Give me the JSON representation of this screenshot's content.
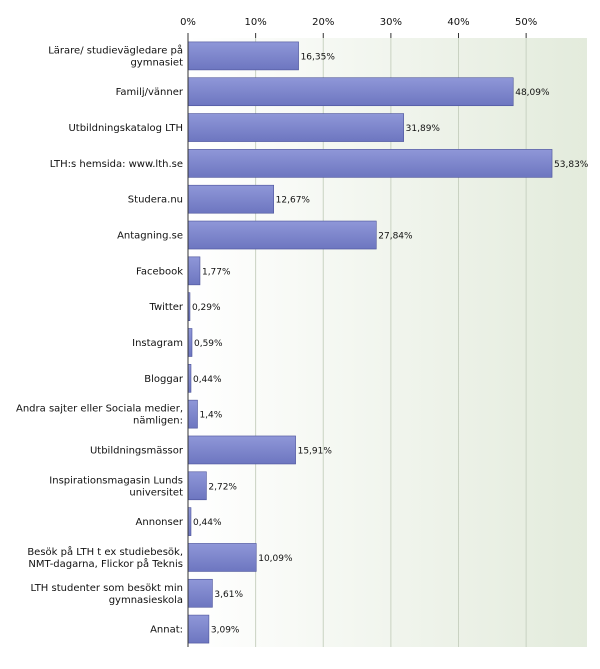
{
  "chart_data": {
    "type": "bar",
    "orientation": "horizontal",
    "categories": [
      [
        "Lärare/ studievägledare på",
        "gymnasiet"
      ],
      [
        "Familj/vänner"
      ],
      [
        "Utbildningskatalog LTH"
      ],
      [
        "LTH:s hemsida: www.lth.se"
      ],
      [
        "Studera.nu"
      ],
      [
        "Antagning.se"
      ],
      [
        "Facebook"
      ],
      [
        "Twitter"
      ],
      [
        "Instagram"
      ],
      [
        "Bloggar"
      ],
      [
        "Andra sajter eller Sociala medier,",
        "nämligen:"
      ],
      [
        "Utbildningsmässor"
      ],
      [
        "Inspirationsmagasin Lunds",
        "universitet"
      ],
      [
        "Annonser"
      ],
      [
        "Besök på LTH t ex studiebesök,",
        "NMT-dagarna, Flickor på Teknis"
      ],
      [
        "LTH studenter som besökt min",
        "gymnasieskola"
      ],
      [
        "Annat:"
      ]
    ],
    "values": [
      16.35,
      48.09,
      31.89,
      53.83,
      12.67,
      27.84,
      1.77,
      0.29,
      0.59,
      0.44,
      1.4,
      15.91,
      2.72,
      0.44,
      10.09,
      3.61,
      3.09
    ],
    "value_labels": [
      "16,35%",
      "48,09%",
      "31,89%",
      "53,83%",
      "12,67%",
      "27,84%",
      "1,77%",
      "0,29%",
      "0,59%",
      "0,44%",
      "1,4%",
      "15,91%",
      "2,72%",
      "0,44%",
      "10,09%",
      "3,61%",
      "3,09%"
    ],
    "xticks": [
      0,
      10,
      20,
      30,
      40,
      50
    ],
    "xtick_labels": [
      "0%",
      "10%",
      "20%",
      "30%",
      "40%",
      "50%"
    ],
    "xlim": [
      0,
      59
    ],
    "axis_position": "top",
    "grid": true,
    "colors": {
      "bar_fill": "#7b84cc",
      "bar_stroke": "#4a5199",
      "plot_bg_left": "#ffffff",
      "plot_bg_right": "#e3ebdc",
      "grid": "#c9d2c2",
      "axis": "#333333"
    }
  }
}
